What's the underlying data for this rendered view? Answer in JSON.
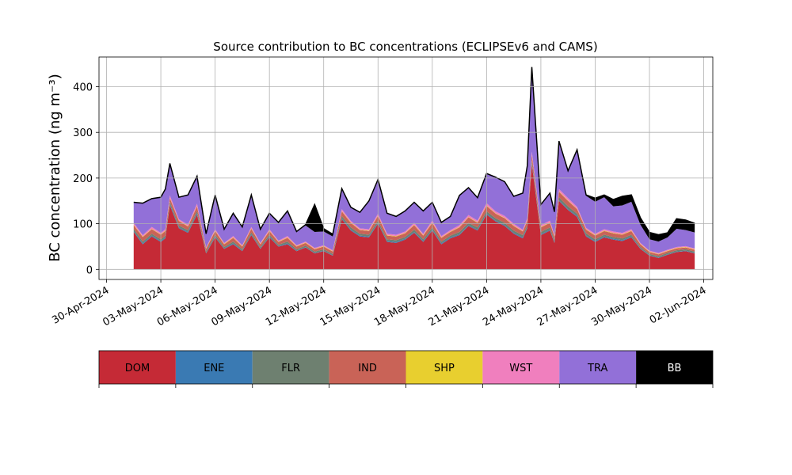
{
  "chart_data": {
    "type": "area",
    "title": "Source contribution to BC concentrations (ECLIPSEv6 and CAMS)",
    "ylabel": "BC concentration (ng m⁻³)",
    "xlabel": "",
    "xlim": [
      "2024-04-29T14:00",
      "2024-06-02T12:00"
    ],
    "ylim": [
      -22,
      465
    ],
    "yticks": [
      0,
      100,
      200,
      300,
      400
    ],
    "xticks": [
      "2024-04-30",
      "2024-05-03",
      "2024-05-06",
      "2024-05-09",
      "2024-05-12",
      "2024-05-15",
      "2024-05-18",
      "2024-05-21",
      "2024-05-24",
      "2024-05-27",
      "2024-05-30",
      "2024-06-02"
    ],
    "xtick_labels": [
      "30-Apr-2024",
      "03-May-2024",
      "06-May-2024",
      "09-May-2024",
      "12-May-2024",
      "15-May-2024",
      "18-May-2024",
      "21-May-2024",
      "24-May-2024",
      "27-May-2024",
      "30-May-2024",
      "02-Jun-2024"
    ],
    "grid": true,
    "legend_position": "below",
    "categories": [
      "DOM",
      "ENE",
      "FLR",
      "IND",
      "SHP",
      "WST",
      "TRA",
      "BB"
    ],
    "colors": {
      "DOM": "#c52a36",
      "ENE": "#3a7ab3",
      "FLR": "#6e8070",
      "IND": "#c96357",
      "SHP": "#e8cf2f",
      "WST": "#f07fbe",
      "TRA": "#9270d8",
      "BB": "#000000"
    },
    "x": [
      "2024-05-01T12:00",
      "2024-05-02T00:00",
      "2024-05-02T12:00",
      "2024-05-03T00:00",
      "2024-05-03T06:00",
      "2024-05-03T12:00",
      "2024-05-04T00:00",
      "2024-05-04T12:00",
      "2024-05-05T00:00",
      "2024-05-05T12:00",
      "2024-05-06T00:00",
      "2024-05-06T12:00",
      "2024-05-07T00:00",
      "2024-05-07T12:00",
      "2024-05-08T00:00",
      "2024-05-08T12:00",
      "2024-05-09T00:00",
      "2024-05-09T12:00",
      "2024-05-10T00:00",
      "2024-05-10T12:00",
      "2024-05-11T00:00",
      "2024-05-11T12:00",
      "2024-05-12T00:00",
      "2024-05-12T12:00",
      "2024-05-13T00:00",
      "2024-05-13T12:00",
      "2024-05-14T00:00",
      "2024-05-14T12:00",
      "2024-05-15T00:00",
      "2024-05-15T12:00",
      "2024-05-16T00:00",
      "2024-05-16T12:00",
      "2024-05-17T00:00",
      "2024-05-17T12:00",
      "2024-05-18T00:00",
      "2024-05-18T12:00",
      "2024-05-19T00:00",
      "2024-05-19T12:00",
      "2024-05-20T00:00",
      "2024-05-20T12:00",
      "2024-05-21T00:00",
      "2024-05-21T12:00",
      "2024-05-22T00:00",
      "2024-05-22T12:00",
      "2024-05-23T00:00",
      "2024-05-23T06:00",
      "2024-05-23T12:00",
      "2024-05-24T00:00",
      "2024-05-24T12:00",
      "2024-05-24T18:00",
      "2024-05-25T00:00",
      "2024-05-25T12:00",
      "2024-05-26T00:00",
      "2024-05-26T12:00",
      "2024-05-27T00:00",
      "2024-05-27T12:00",
      "2024-05-28T00:00",
      "2024-05-28T12:00",
      "2024-05-29T00:00",
      "2024-05-29T12:00",
      "2024-05-30T00:00",
      "2024-05-30T12:00",
      "2024-05-31T00:00",
      "2024-05-31T12:00",
      "2024-06-01T00:00",
      "2024-06-01T12:00"
    ],
    "series": [
      {
        "name": "DOM",
        "values": [
          82,
          55,
          72,
          60,
          68,
          140,
          90,
          80,
          120,
          35,
          70,
          45,
          55,
          40,
          75,
          45,
          70,
          50,
          55,
          40,
          48,
          35,
          40,
          30,
          110,
          85,
          72,
          70,
          100,
          60,
          58,
          65,
          80,
          60,
          85,
          55,
          68,
          75,
          95,
          85,
          120,
          105,
          95,
          78,
          68,
          90,
          230,
          75,
          85,
          58,
          150,
          130,
          115,
          72,
          60,
          70,
          65,
          62,
          70,
          45,
          30,
          25,
          32,
          38,
          40,
          35
        ]
      },
      {
        "name": "ENE",
        "values": [
          2,
          2,
          2,
          2,
          2,
          3,
          2,
          2,
          3,
          1,
          2,
          1,
          2,
          1,
          2,
          1,
          2,
          1,
          2,
          1,
          1,
          1,
          1,
          1,
          2,
          2,
          2,
          2,
          2,
          2,
          2,
          2,
          2,
          2,
          2,
          2,
          2,
          2,
          2,
          2,
          2,
          2,
          2,
          2,
          2,
          2,
          3,
          2,
          2,
          2,
          2,
          2,
          2,
          2,
          2,
          2,
          2,
          2,
          2,
          1,
          1,
          1,
          1,
          1,
          1,
          1
        ]
      },
      {
        "name": "FLR",
        "values": [
          5,
          4,
          4,
          4,
          4,
          5,
          4,
          4,
          5,
          3,
          4,
          3,
          4,
          3,
          4,
          3,
          4,
          3,
          4,
          3,
          3,
          3,
          3,
          3,
          5,
          5,
          4,
          4,
          5,
          4,
          4,
          4,
          5,
          4,
          5,
          4,
          4,
          5,
          5,
          5,
          5,
          5,
          5,
          5,
          5,
          5,
          6,
          5,
          5,
          4,
          6,
          6,
          5,
          5,
          4,
          4,
          4,
          4,
          4,
          3,
          3,
          3,
          3,
          3,
          3,
          3
        ]
      },
      {
        "name": "IND",
        "values": [
          8,
          10,
          10,
          10,
          10,
          8,
          10,
          8,
          10,
          6,
          8,
          6,
          8,
          6,
          8,
          6,
          8,
          6,
          8,
          6,
          6,
          5,
          6,
          5,
          10,
          10,
          8,
          8,
          10,
          8,
          8,
          8,
          10,
          8,
          10,
          8,
          8,
          10,
          12,
          10,
          12,
          10,
          10,
          10,
          8,
          10,
          12,
          10,
          10,
          8,
          12,
          12,
          10,
          8,
          8,
          8,
          8,
          8,
          8,
          6,
          4,
          4,
          4,
          4,
          4,
          4
        ]
      },
      {
        "name": "SHP",
        "values": [
          1,
          1,
          1,
          1,
          1,
          1,
          1,
          1,
          1,
          1,
          1,
          1,
          1,
          1,
          1,
          1,
          1,
          1,
          1,
          1,
          1,
          1,
          1,
          1,
          1,
          1,
          1,
          1,
          1,
          1,
          1,
          1,
          1,
          1,
          1,
          1,
          1,
          1,
          1,
          1,
          1,
          1,
          1,
          1,
          1,
          1,
          1,
          1,
          1,
          1,
          1,
          1,
          1,
          1,
          1,
          1,
          1,
          1,
          1,
          1,
          1,
          1,
          1,
          1,
          1,
          1
        ]
      },
      {
        "name": "WST",
        "values": [
          4,
          3,
          4,
          3,
          3,
          5,
          3,
          3,
          5,
          2,
          3,
          2,
          3,
          2,
          3,
          2,
          3,
          2,
          3,
          2,
          2,
          2,
          2,
          2,
          4,
          3,
          3,
          3,
          4,
          3,
          3,
          3,
          4,
          3,
          4,
          3,
          3,
          4,
          4,
          4,
          5,
          4,
          4,
          4,
          3,
          4,
          6,
          4,
          4,
          3,
          5,
          5,
          4,
          3,
          3,
          3,
          3,
          3,
          3,
          2,
          2,
          2,
          2,
          2,
          2,
          2
        ]
      },
      {
        "name": "TRA",
        "values": [
          45,
          70,
          62,
          78,
          88,
          70,
          48,
          65,
          60,
          30,
          75,
          30,
          50,
          40,
          70,
          30,
          35,
          40,
          55,
          30,
          35,
          35,
          30,
          30,
          45,
          30,
          35,
          62,
          75,
          45,
          40,
          45,
          45,
          50,
          40,
          30,
          30,
          65,
          60,
          50,
          65,
          75,
          75,
          60,
          80,
          115,
          185,
          45,
          60,
          50,
          105,
          60,
          125,
          70,
          70,
          70,
          55,
          60,
          60,
          40,
          25,
          25,
          27,
          40,
          35,
          35
        ]
      },
      {
        "name": "BB",
        "values": [
          0,
          0,
          0,
          0,
          0,
          0,
          0,
          0,
          0,
          0,
          0,
          0,
          0,
          0,
          0,
          0,
          0,
          0,
          0,
          0,
          2,
          60,
          6,
          5,
          0,
          0,
          0,
          0,
          0,
          0,
          0,
          0,
          0,
          0,
          0,
          0,
          0,
          0,
          0,
          0,
          0,
          0,
          0,
          0,
          0,
          0,
          0,
          0,
          0,
          0,
          0,
          0,
          0,
          2,
          8,
          5,
          15,
          20,
          15,
          15,
          15,
          15,
          10,
          22,
          22,
          20
        ]
      }
    ]
  }
}
